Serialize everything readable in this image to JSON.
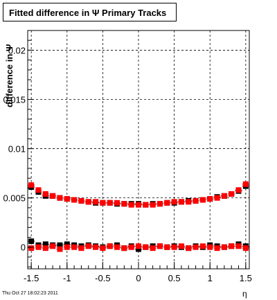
{
  "chart_data": {
    "type": "scatter",
    "title": "Fitted difference in Ψ   Primary Tracks",
    "ylabel": "difference in Ψ",
    "xlabel": "η",
    "xlim": [
      -1.55,
      1.55
    ],
    "ylim": [
      -0.0022,
      0.022
    ],
    "x_ticks": [
      -1.5,
      -1,
      -0.5,
      0,
      0.5,
      1,
      1.5
    ],
    "x_tick_labels": [
      "-1.5",
      "-1",
      "-0.5",
      "0",
      "0.5",
      "1",
      "1.5"
    ],
    "y_ticks": [
      0,
      0.005,
      0.01,
      0.015,
      0.02
    ],
    "y_tick_labels": [
      "0",
      "0.005",
      "0.01",
      "0.015",
      "0.02"
    ],
    "grid": true,
    "series": [
      {
        "color": "#000000",
        "marker": "square",
        "x": [
          -1.5,
          -1.4,
          -1.3,
          -1.2,
          -1.1,
          -1.0,
          -0.9,
          -0.8,
          -0.7,
          -0.6,
          -0.5,
          -0.4,
          -0.3,
          -0.2,
          -0.1,
          0.0,
          0.1,
          0.2,
          0.3,
          0.4,
          0.5,
          0.6,
          0.7,
          0.8,
          0.9,
          1.0,
          1.1,
          1.2,
          1.3,
          1.4,
          1.5
        ],
        "y": [
          0.0061,
          0.0056,
          0.0052,
          0.0052,
          0.005,
          0.0049,
          0.0048,
          0.0047,
          0.0046,
          0.0045,
          0.0045,
          0.0045,
          0.0044,
          0.0044,
          0.0044,
          0.0044,
          0.0043,
          0.0044,
          0.0044,
          0.0045,
          0.0045,
          0.0046,
          0.0047,
          0.0047,
          0.0048,
          0.0049,
          0.0051,
          0.0052,
          0.0054,
          0.0057,
          0.0062
        ]
      },
      {
        "color": "#ff0000",
        "marker": "square",
        "x": [
          -1.5,
          -1.4,
          -1.3,
          -1.2,
          -1.1,
          -1.0,
          -0.9,
          -0.8,
          -0.7,
          -0.6,
          -0.5,
          -0.4,
          -0.3,
          -0.2,
          -0.1,
          0.0,
          0.1,
          0.2,
          0.3,
          0.4,
          0.5,
          0.6,
          0.7,
          0.8,
          0.9,
          1.0,
          1.1,
          1.2,
          1.3,
          1.4,
          1.5
        ],
        "y": [
          0.0063,
          0.0058,
          0.0054,
          0.0052,
          0.005,
          0.0049,
          0.0048,
          0.0047,
          0.0046,
          0.0046,
          0.0045,
          0.0045,
          0.0045,
          0.0044,
          0.0043,
          0.0043,
          0.0043,
          0.0043,
          0.0044,
          0.0045,
          0.0046,
          0.0046,
          0.0046,
          0.0047,
          0.0048,
          0.0049,
          0.005,
          0.0052,
          0.0054,
          0.0058,
          0.0064
        ]
      },
      {
        "color": "#000000",
        "marker": "square",
        "x": [
          -1.5,
          -1.4,
          -1.3,
          -1.2,
          -1.1,
          -1.0,
          -0.9,
          -0.8,
          -0.7,
          -0.6,
          -0.5,
          -0.4,
          -0.3,
          -0.2,
          -0.1,
          0.0,
          0.1,
          0.2,
          0.3,
          0.4,
          0.5,
          0.6,
          0.7,
          0.8,
          0.9,
          1.0,
          1.1,
          1.2,
          1.3,
          1.4,
          1.5
        ],
        "y": [
          0.0006,
          0.0002,
          0.0003,
          0.0002,
          0.0002,
          0.0003,
          0.0002,
          0.0001,
          0.0002,
          0.0001,
          0.0,
          0.0001,
          0.0002,
          -0.0001,
          0.0001,
          -0.0002,
          0.0,
          0.0001,
          0.0001,
          0.0,
          0.0001,
          0.0,
          -0.0001,
          0.0001,
          0.0,
          0.0002,
          0.0001,
          0.0,
          0.0001,
          0.0003,
          0.0001
        ]
      },
      {
        "color": "#ff0000",
        "marker": "square",
        "x": [
          -1.5,
          -1.4,
          -1.3,
          -1.2,
          -1.1,
          -1.0,
          -0.9,
          -0.8,
          -0.7,
          -0.6,
          -0.5,
          -0.4,
          -0.3,
          -0.2,
          -0.1,
          0.0,
          0.1,
          0.2,
          0.3,
          0.4,
          0.5,
          0.6,
          0.7,
          0.8,
          0.9,
          1.0,
          1.1,
          1.2,
          1.3,
          1.4,
          1.5
        ],
        "y": [
          -0.0001,
          0.0,
          -0.0001,
          0.0001,
          -0.0002,
          0.0,
          0.0,
          -0.0001,
          0.0001,
          0.0,
          -0.0001,
          0.0001,
          0.0,
          -0.0001,
          0.0,
          0.0001,
          0.0,
          -0.0001,
          0.0001,
          0.0,
          0.0,
          0.0001,
          -0.0001,
          0.0,
          0.0001,
          0.0,
          -0.0001,
          0.0,
          0.0001,
          0.0001,
          -0.0001
        ]
      }
    ]
  },
  "footer": {
    "timestamp": "Thu Oct 27 18:02:23 2011"
  }
}
